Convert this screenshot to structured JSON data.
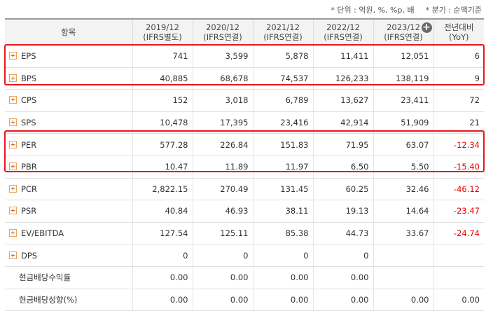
{
  "unit_note": {
    "unit": "* 단위 : 억원, %, %p, 배",
    "period": "* 분기 : 순액기준"
  },
  "header": {
    "item": "항목",
    "years": [
      {
        "year": "2019/12",
        "basis": "(IFRS별도)"
      },
      {
        "year": "2020/12",
        "basis": "(IFRS연결)"
      },
      {
        "year": "2021/12",
        "basis": "(IFRS연결)"
      },
      {
        "year": "2022/12",
        "basis": "(IFRS연결)"
      },
      {
        "year": "2023/12",
        "basis": "(IFRS연결)"
      }
    ],
    "change": "전년대비",
    "change_sub": "(YoY)",
    "add_column_icon": "plus-circle-icon"
  },
  "rows": [
    {
      "label": "EPS",
      "v": [
        "741",
        "3,599",
        "5,878",
        "11,411",
        "12,051"
      ],
      "yoy": "6"
    },
    {
      "label": "BPS",
      "v": [
        "40,885",
        "68,678",
        "74,537",
        "126,233",
        "138,119"
      ],
      "yoy": "9"
    },
    {
      "label": "CPS",
      "v": [
        "152",
        "3,018",
        "6,789",
        "13,627",
        "23,411"
      ],
      "yoy": "72"
    },
    {
      "label": "SPS",
      "v": [
        "10,478",
        "17,395",
        "23,416",
        "42,914",
        "51,909"
      ],
      "yoy": "21"
    },
    {
      "label": "PER",
      "v": [
        "577.28",
        "226.84",
        "151.83",
        "71.95",
        "63.07"
      ],
      "yoy": "-12.34"
    },
    {
      "label": "PBR",
      "v": [
        "10.47",
        "11.89",
        "11.97",
        "6.50",
        "5.50"
      ],
      "yoy": "-15.40"
    },
    {
      "label": "PCR",
      "v": [
        "2,822.15",
        "270.49",
        "131.45",
        "60.25",
        "32.46"
      ],
      "yoy": "-46.12"
    },
    {
      "label": "PSR",
      "v": [
        "40.84",
        "46.93",
        "38.11",
        "19.13",
        "14.64"
      ],
      "yoy": "-23.47"
    },
    {
      "label": "EV/EBITDA",
      "v": [
        "127.54",
        "125.11",
        "85.38",
        "44.73",
        "33.67"
      ],
      "yoy": "-24.74"
    },
    {
      "label": "DPS",
      "v": [
        "0",
        "0",
        "0",
        "0",
        ""
      ],
      "yoy": ""
    },
    {
      "label": "현금배당수익률",
      "v": [
        "0.00",
        "0.00",
        "0.00",
        "0.00",
        ""
      ],
      "yoy": ""
    },
    {
      "label": "현금배당성향(%)",
      "v": [
        "0.00",
        "0.00",
        "0.00",
        "0.00",
        "0.00"
      ],
      "yoy": "0.00"
    }
  ],
  "colors": {
    "negative": "#e60000",
    "highlight": "#e8161b",
    "header_bg": "#f3f3f3",
    "expand_icon": "#e05a00"
  },
  "icons": {
    "expand": "expand-plus-icon"
  }
}
